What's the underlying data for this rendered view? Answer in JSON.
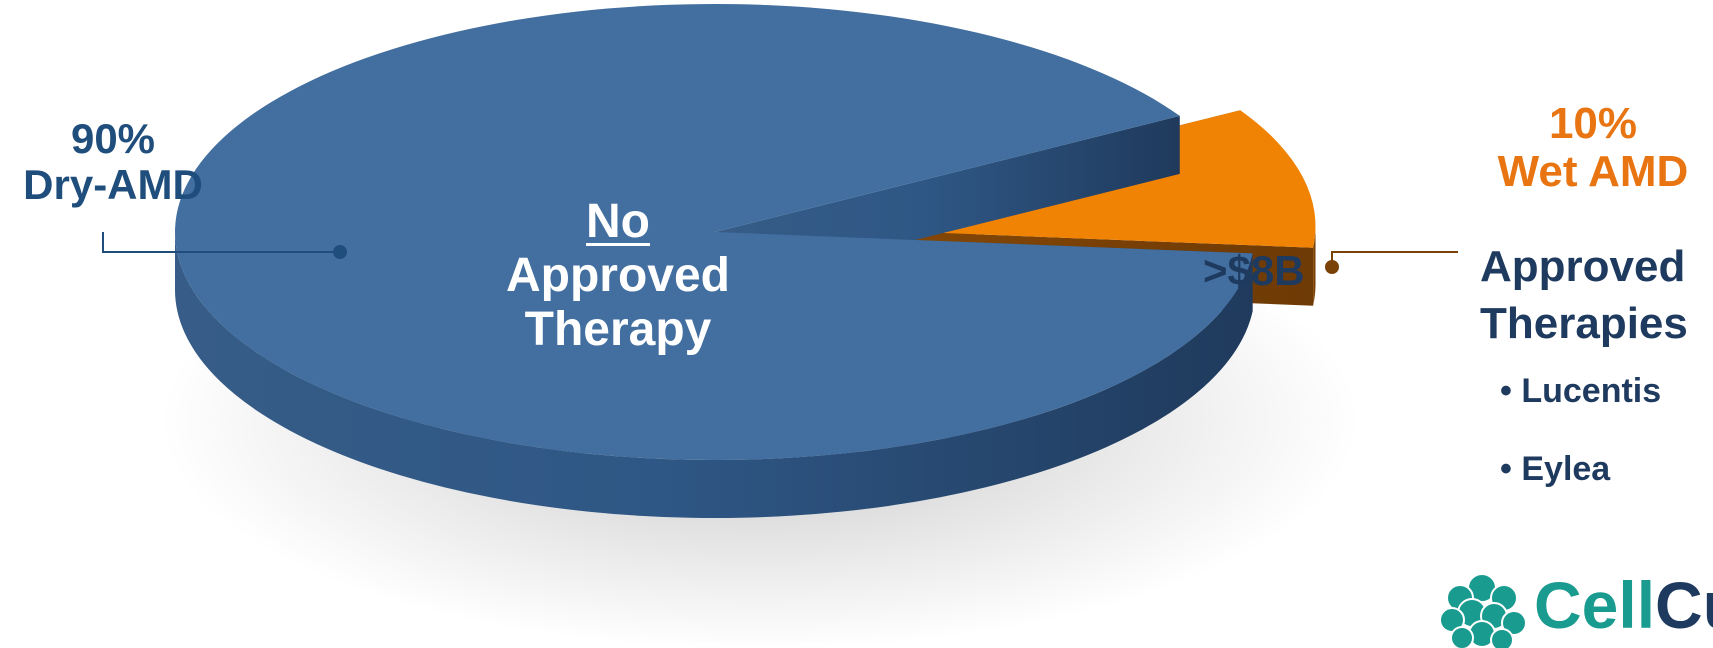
{
  "chart_data": {
    "type": "pie",
    "style": "3d-exploded",
    "slices": [
      {
        "label": "Dry-AMD",
        "value": 90,
        "percent_label": "90%",
        "color": "#426f9f",
        "inner_text": [
          "No",
          "Approved",
          "Therapy"
        ]
      },
      {
        "label": "Wet AMD",
        "value": 10,
        "percent_label": "10%",
        "color": "#f08204",
        "inner_text": [
          ">$8B"
        ],
        "exploded": true
      }
    ]
  },
  "annotations": {
    "wet_heading": [
      "Approved",
      "Therapies"
    ],
    "wet_therapies": [
      "Lucentis",
      "Eylea"
    ]
  },
  "logo": {
    "text_light": "Cell",
    "text_dark": "Cu",
    "color_light": "#1a9b8f",
    "color_dark": "#1f3a5f"
  },
  "colors": {
    "dry_label": "#1f4e7d",
    "wet_label": "#e87511",
    "navy": "#1f3a5f"
  }
}
